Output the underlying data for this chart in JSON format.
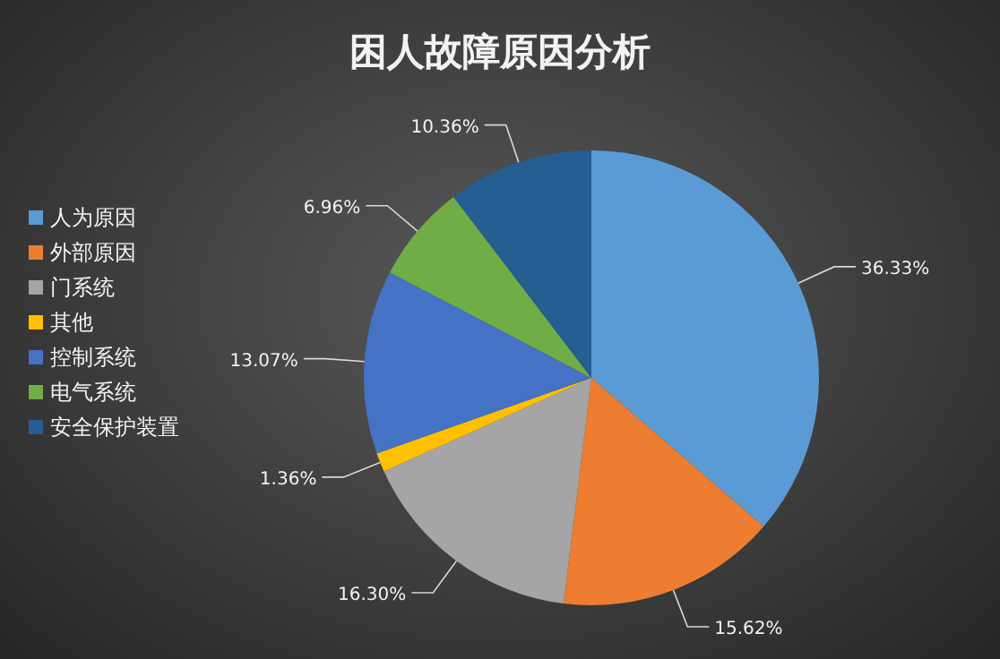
{
  "chart_data": {
    "type": "pie",
    "title": "困人故障原因分析",
    "categories": [
      "人为原因",
      "外部原因",
      "门系统",
      "其他",
      "控制系统",
      "电气系统",
      "安全保护装置"
    ],
    "values": [
      36.33,
      15.62,
      16.3,
      1.36,
      13.07,
      6.96,
      10.36
    ],
    "value_labels": [
      "36.33%",
      "15.62%",
      "16.30%",
      "1.36%",
      "13.07%",
      "6.96%",
      "10.36%"
    ],
    "colors": [
      "#5b9bd5",
      "#ed7d31",
      "#a5a5a5",
      "#ffc000",
      "#4472c4",
      "#70ad47",
      "#255e91"
    ],
    "legend": "left"
  }
}
